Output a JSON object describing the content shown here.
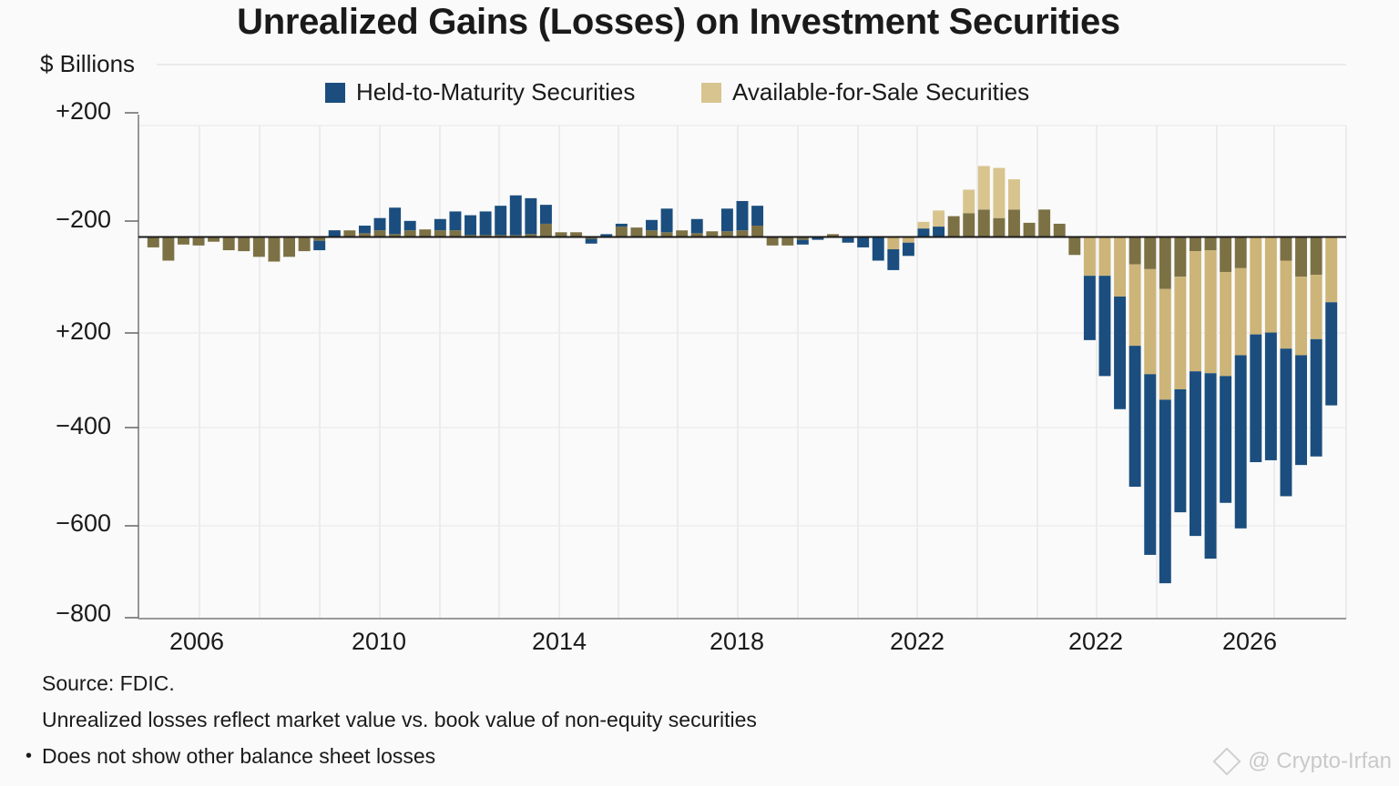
{
  "chart_data": {
    "type": "bar",
    "stacked": true,
    "title": "Unrealized Gains (Losses) on Investment Securities",
    "ylabel": "$ Billions",
    "xlabel": "",
    "y_tick_labels": [
      "+200",
      "−200",
      "+200",
      "−400",
      "−600",
      "−800"
    ],
    "x_tick_labels": [
      "2006",
      "2010",
      "2014",
      "2018",
      "2022",
      "2022",
      "2026"
    ],
    "ylim": [
      -800,
      250
    ],
    "grid": true,
    "legend_position": "top-center",
    "legend": [
      {
        "name": "Held-to-Maturity Securities",
        "color": "#1b4e7e"
      },
      {
        "name": "Available-for-Sale Securities",
        "color": "#d8c48e"
      }
    ],
    "overlap_color": "#7c7145",
    "colors": {
      "htm": "#1b4e7e",
      "afs": "#cdb478",
      "overlap": "#7c7145",
      "afs_light": "#d8c48e"
    },
    "series_note": "Each bar: overlap = olive segment nearest zero, htm = blue segment, afs = light tan segment; values in $ billions (sign = direction from zero)",
    "bars": [
      {
        "overlap": -22,
        "htm": 0,
        "afs": 0
      },
      {
        "overlap": -50,
        "htm": 0,
        "afs": 0
      },
      {
        "overlap": -16,
        "htm": 0,
        "afs": 0
      },
      {
        "overlap": -18,
        "htm": 0,
        "afs": 0
      },
      {
        "overlap": -10,
        "htm": 0,
        "afs": 0
      },
      {
        "overlap": -28,
        "htm": 0,
        "afs": 0
      },
      {
        "overlap": -30,
        "htm": 0,
        "afs": 0
      },
      {
        "overlap": -42,
        "htm": 0,
        "afs": 0
      },
      {
        "overlap": -52,
        "htm": 0,
        "afs": 0
      },
      {
        "overlap": -42,
        "htm": 0,
        "afs": 0
      },
      {
        "overlap": -30,
        "htm": 0,
        "afs": 0
      },
      {
        "overlap": -8,
        "htm": -20,
        "afs": 0
      },
      {
        "overlap": 14,
        "htm": -14,
        "afs": 0
      },
      {
        "overlap": 14,
        "htm": 0,
        "afs": 0
      },
      {
        "overlap": 8,
        "htm": 16,
        "afs": 0
      },
      {
        "overlap": 14,
        "htm": 26,
        "afs": 0
      },
      {
        "overlap": 6,
        "htm": 56,
        "afs": 0
      },
      {
        "overlap": 14,
        "htm": 20,
        "afs": 0
      },
      {
        "overlap": 16,
        "htm": 0,
        "afs": 0
      },
      {
        "overlap": 14,
        "htm": 24,
        "afs": 0
      },
      {
        "overlap": 14,
        "htm": 40,
        "afs": 0
      },
      {
        "overlap": 4,
        "htm": 42,
        "afs": 0
      },
      {
        "overlap": 4,
        "htm": 50,
        "afs": 0
      },
      {
        "overlap": 4,
        "htm": 62,
        "afs": 0
      },
      {
        "overlap": 4,
        "htm": 84,
        "afs": 0
      },
      {
        "overlap": 6,
        "htm": 76,
        "afs": 0
      },
      {
        "overlap": 28,
        "htm": 40,
        "afs": 0
      },
      {
        "overlap": 10,
        "htm": 0,
        "afs": 0
      },
      {
        "overlap": 10,
        "htm": 0,
        "afs": 0
      },
      {
        "overlap": -4,
        "htm": -10,
        "afs": 0
      },
      {
        "overlap": 0,
        "htm": 6,
        "afs": 0
      },
      {
        "overlap": 22,
        "htm": 6,
        "afs": 0
      },
      {
        "overlap": 20,
        "htm": 0,
        "afs": 0
      },
      {
        "overlap": 14,
        "htm": 22,
        "afs": 0
      },
      {
        "overlap": 10,
        "htm": 50,
        "afs": 0
      },
      {
        "overlap": 14,
        "htm": 0,
        "afs": 0
      },
      {
        "overlap": 8,
        "htm": 30,
        "afs": 0
      },
      {
        "overlap": 12,
        "htm": 0,
        "afs": 0
      },
      {
        "overlap": 12,
        "htm": 48,
        "afs": 0
      },
      {
        "overlap": 14,
        "htm": 62,
        "afs": 0
      },
      {
        "overlap": 24,
        "htm": 42,
        "afs": 0
      },
      {
        "overlap": -18,
        "htm": 0,
        "afs": 0
      },
      {
        "overlap": -18,
        "htm": 0,
        "afs": 0
      },
      {
        "overlap": -6,
        "htm": -10,
        "afs": 0
      },
      {
        "overlap": 0,
        "htm": -6,
        "afs": 0
      },
      {
        "overlap": 6,
        "htm": 0,
        "afs": 0
      },
      {
        "overlap": -2,
        "htm": -10,
        "afs": 0
      },
      {
        "overlap": 0,
        "htm": -22,
        "afs": 0
      },
      {
        "overlap": 0,
        "htm": -50,
        "afs": 0
      },
      {
        "overlap": 0,
        "htm": -44,
        "afs": -26
      },
      {
        "overlap": 0,
        "htm": -28,
        "afs": -12
      },
      {
        "overlap": 0,
        "htm": 18,
        "afs": 14
      },
      {
        "overlap": 0,
        "htm": 22,
        "afs": 34
      },
      {
        "overlap": 44,
        "htm": 0,
        "afs": 0
      },
      {
        "overlap": 50,
        "htm": 0,
        "afs": 50
      },
      {
        "overlap": 58,
        "htm": 0,
        "afs": 92
      },
      {
        "overlap": 40,
        "htm": 0,
        "afs": 106
      },
      {
        "overlap": 58,
        "htm": 0,
        "afs": 64
      },
      {
        "overlap": 30,
        "htm": 0,
        "afs": 0
      },
      {
        "overlap": 58,
        "htm": 0,
        "afs": 0
      },
      {
        "overlap": 28,
        "htm": 0,
        "afs": 0
      },
      {
        "overlap": -38,
        "htm": 0,
        "afs": 0
      },
      {
        "overlap": 0,
        "htm": -136,
        "afs": -82
      },
      {
        "overlap": 0,
        "htm": -212,
        "afs": -82
      },
      {
        "overlap": 0,
        "htm": -238,
        "afs": -126
      },
      {
        "overlap": -58,
        "htm": -298,
        "afs": -172
      },
      {
        "overlap": -68,
        "htm": -382,
        "afs": -222
      },
      {
        "overlap": -110,
        "htm": -388,
        "afs": -234
      },
      {
        "overlap": -84,
        "htm": -260,
        "afs": -238
      },
      {
        "overlap": -30,
        "htm": -348,
        "afs": -254
      },
      {
        "overlap": -28,
        "htm": -392,
        "afs": -260
      },
      {
        "overlap": -74,
        "htm": -268,
        "afs": -220
      },
      {
        "overlap": -66,
        "htm": -366,
        "afs": -184
      },
      {
        "overlap": 0,
        "htm": -270,
        "afs": -206
      },
      {
        "overlap": 0,
        "htm": -270,
        "afs": -202
      },
      {
        "overlap": -50,
        "htm": -312,
        "afs": -186
      },
      {
        "overlap": -84,
        "htm": -232,
        "afs": -166
      },
      {
        "overlap": -80,
        "htm": -248,
        "afs": -136
      },
      {
        "overlap": 0,
        "htm": -218,
        "afs": -138
      }
    ]
  },
  "notes": {
    "source": "Source: FDIC.",
    "line1": "Unrealized losses reflect market value vs. book value of non-equity securities",
    "bullet": "•",
    "line2": "Does not show other balance sheet losses"
  },
  "watermark": {
    "text": "@ Crypto-Irfan",
    "icon": "binance-diamond-icon"
  }
}
